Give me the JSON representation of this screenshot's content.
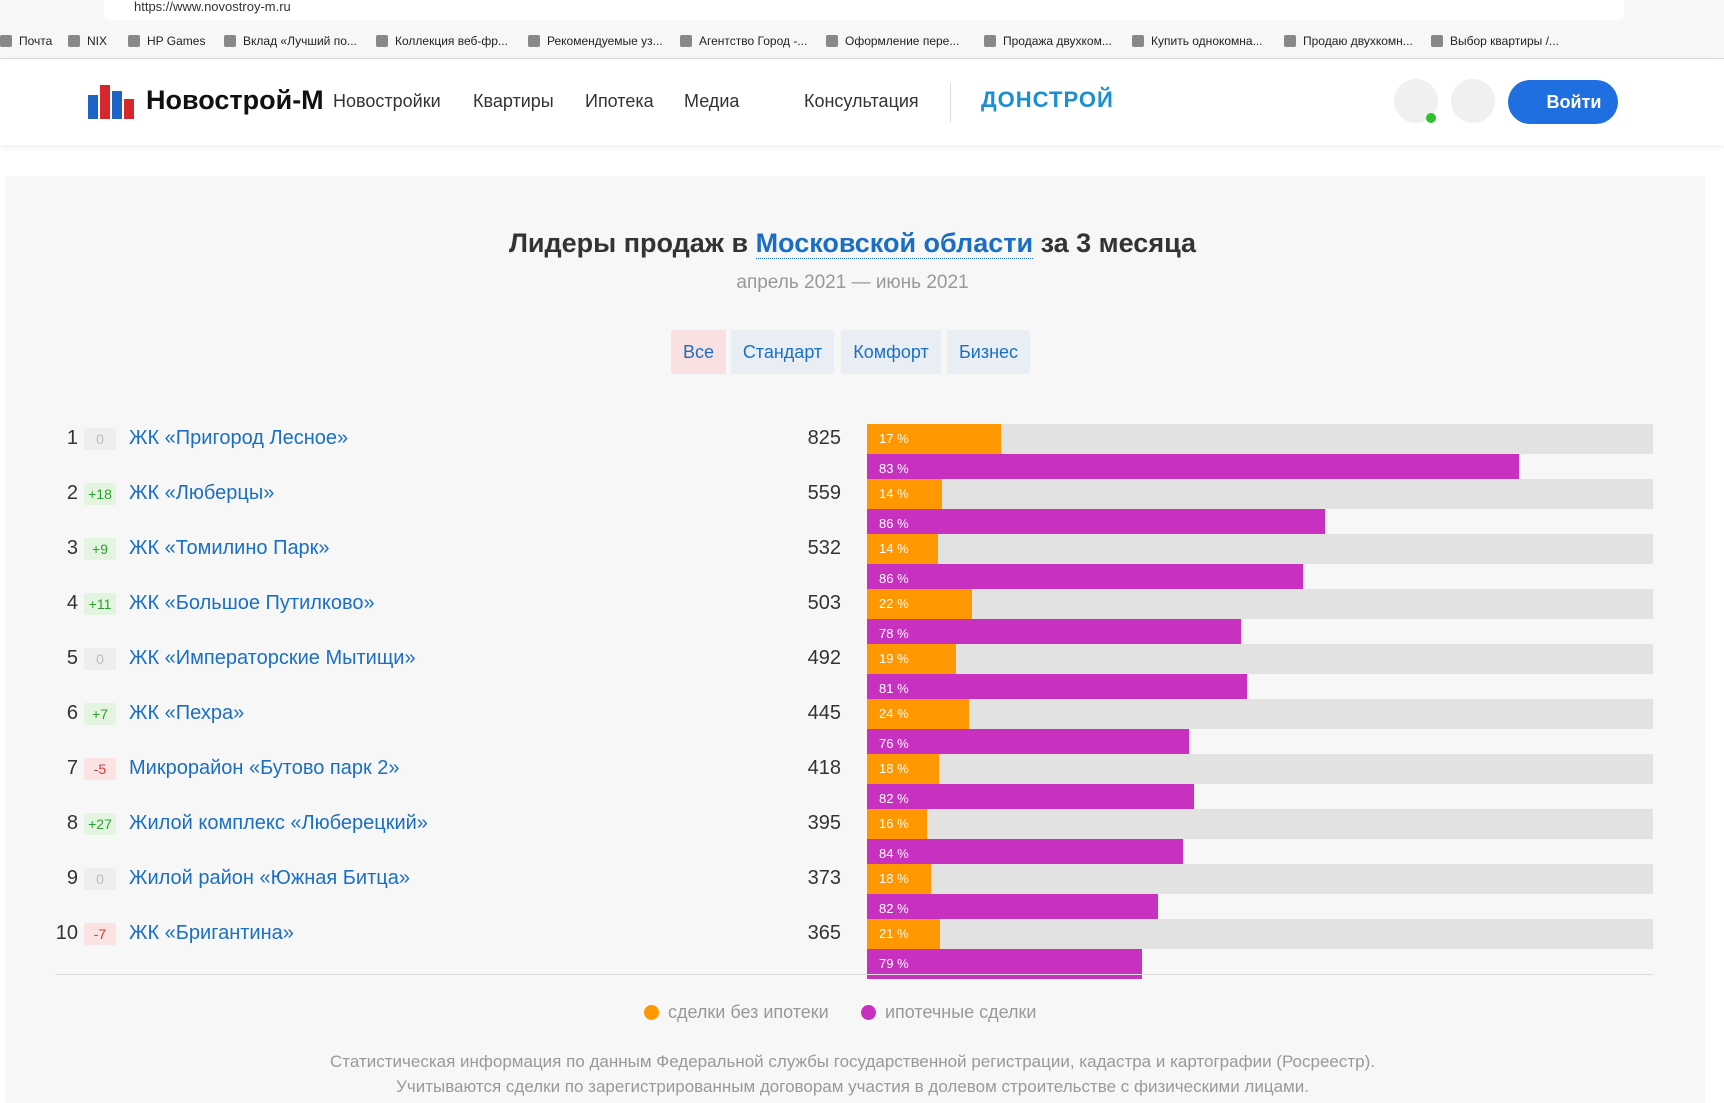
{
  "browser": {
    "url": "https://www.novostroy-m.ru",
    "bookmarks": [
      "Почта",
      "NIX",
      "HP Games",
      "Вклад «Лучший по...",
      "Коллекция веб-фр...",
      "Рекомендуемые уз...",
      "Агентство Город -...",
      "Оформление пере...",
      "Продажа двухком...",
      "Купить однокомна...",
      "Продаю двухкомн...",
      "Выбор квартиры /..."
    ]
  },
  "header": {
    "logo": "Новострой-М",
    "nav": [
      "Новостройки",
      "Квартиры",
      "Ипотека",
      "Медиа",
      "Консультация"
    ],
    "partner": "ДОНСТРОЙ",
    "login": "Войти"
  },
  "section": {
    "title_before": "Лидеры продаж в",
    "title_link": "Московской области",
    "title_after": "за 3 месяца",
    "period": "апрель 2021 — июнь 2021",
    "tabs": [
      "Все",
      "Стандарт",
      "Комфорт",
      "Бизнес"
    ],
    "active_tab": 0
  },
  "rows": [
    {
      "rank": "1",
      "change": "0",
      "name": "ЖК «Пригород Лесное»",
      "total": 825,
      "no_mortgage": {
        "value": 17,
        "label": "17 %"
      },
      "mortgage": {
        "value": 83,
        "label": "83 %"
      }
    },
    {
      "rank": "2",
      "change": "+18",
      "name": "ЖК «Люберцы»",
      "total": 559,
      "no_mortgage": {
        "value": 14,
        "label": "14 %"
      },
      "mortgage": {
        "value": 86,
        "label": "86 %"
      }
    },
    {
      "rank": "3",
      "change": "+9",
      "name": "ЖК «Томилино Парк»",
      "total": 532,
      "no_mortgage": {
        "value": 14,
        "label": "14 %"
      },
      "mortgage": {
        "value": 86,
        "label": "86 %"
      }
    },
    {
      "rank": "4",
      "change": "+11",
      "name": "ЖК «Большое Путилково»",
      "total": 503,
      "no_mortgage": {
        "value": 22,
        "label": "22 %"
      },
      "mortgage": {
        "value": 78,
        "label": "78 %"
      }
    },
    {
      "rank": "5",
      "change": "0",
      "name": "ЖК «Императорские Мытищи»",
      "total": 492,
      "no_mortgage": {
        "value": 19,
        "label": "19 %"
      },
      "mortgage": {
        "value": 81,
        "label": "81 %"
      }
    },
    {
      "rank": "6",
      "change": "+7",
      "name": "ЖК «Пехра»",
      "total": 445,
      "no_mortgage": {
        "value": 24,
        "label": "24 %"
      },
      "mortgage": {
        "value": 76,
        "label": "76 %"
      }
    },
    {
      "rank": "7",
      "change": "-5",
      "name": "Микрорайон «Бутово парк 2»",
      "total": 418,
      "no_mortgage": {
        "value": 18,
        "label": "18 %"
      },
      "mortgage": {
        "value": 82,
        "label": "82 %"
      }
    },
    {
      "rank": "8",
      "change": "+27",
      "name": "Жилой комплекс «Люберецкий»",
      "total": 395,
      "no_mortgage": {
        "value": 16,
        "label": "16 %"
      },
      "mortgage": {
        "value": 84,
        "label": "84 %"
      }
    },
    {
      "rank": "9",
      "change": "0",
      "name": "Жилой район «Южная Битца»",
      "total": 373,
      "no_mortgage": {
        "value": 18,
        "label": "18 %"
      },
      "mortgage": {
        "value": 82,
        "label": "82 %"
      }
    },
    {
      "rank": "10",
      "change": "-7",
      "name": "ЖК «Бригантина»",
      "total": 365,
      "no_mortgage": {
        "value": 21,
        "label": "21 %"
      },
      "mortgage": {
        "value": 79,
        "label": "79 %"
      }
    }
  ],
  "legend": [
    {
      "label": "сделки без ипотеки",
      "color": "#ff9800"
    },
    {
      "label": "ипотечные сделки",
      "color": "#c830c0"
    }
  ],
  "footnote": [
    "Статистическая информация по данным Федеральной службы государственной регистрации, кадастра и картографии (Росреестр).",
    "Учитываются сделки по зарегистрированным договорам участия в долевом строительстве с физическими лицами."
  ]
}
